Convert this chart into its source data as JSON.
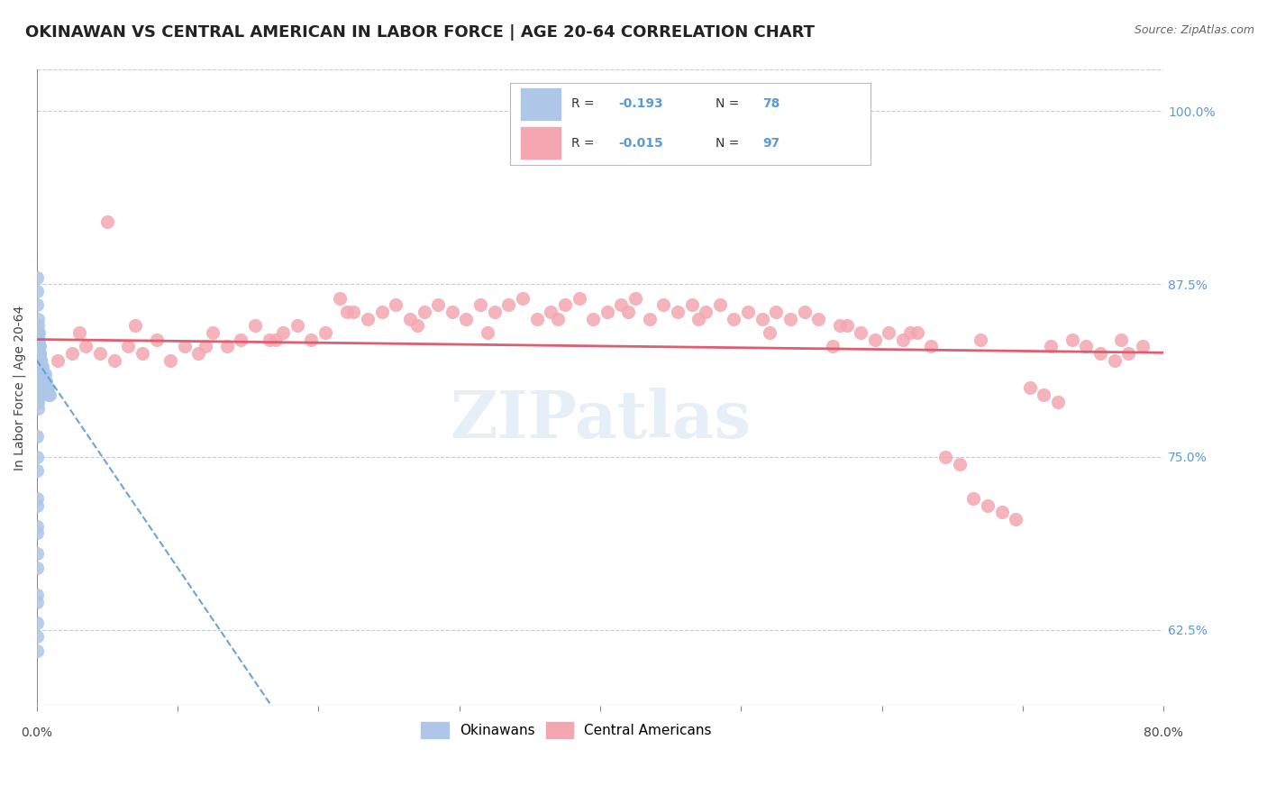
{
  "title": "OKINAWAN VS CENTRAL AMERICAN IN LABOR FORCE | AGE 20-64 CORRELATION CHART",
  "source": "Source: ZipAtlas.com",
  "ylabel": "In Labor Force | Age 20-64",
  "legend_bottom": [
    "Okinawans",
    "Central Americans"
  ],
  "right_yticks": [
    62.5,
    75.0,
    87.5,
    100.0
  ],
  "right_yticklabels": [
    "62.5%",
    "75.0%",
    "87.5%",
    "100.0%"
  ],
  "okinawan_color": "#aec6e8",
  "central_american_color": "#f4a7b0",
  "okinawan_line_color": "#5b9bd5",
  "central_american_line_color": "#e05c6e",
  "R_okinawan": -0.193,
  "N_okinawan": 78,
  "R_central": -0.015,
  "N_central": 97,
  "xlim": [
    0.0,
    80.0
  ],
  "ylim": [
    57.0,
    103.0
  ],
  "background_color": "#ffffff",
  "grid_color": "#cccccc",
  "okinawan_x": [
    0.05,
    0.05,
    0.05,
    0.05,
    0.05,
    0.05,
    0.05,
    0.1,
    0.1,
    0.1,
    0.1,
    0.1,
    0.1,
    0.1,
    0.1,
    0.1,
    0.1,
    0.1,
    0.15,
    0.15,
    0.15,
    0.15,
    0.15,
    0.15,
    0.15,
    0.2,
    0.2,
    0.2,
    0.2,
    0.2,
    0.25,
    0.25,
    0.25,
    0.3,
    0.3,
    0.3,
    0.35,
    0.35,
    0.4,
    0.4,
    0.45,
    0.5,
    0.55,
    0.6,
    0.65,
    0.7,
    0.75,
    0.8,
    0.85,
    0.9,
    0.05,
    0.05,
    0.05,
    0.1,
    0.1,
    0.1,
    0.1,
    0.15,
    0.15,
    0.2,
    0.2,
    0.25,
    0.3,
    0.35,
    0.05,
    0.05,
    0.05,
    0.05,
    0.05,
    0.05,
    0.05,
    0.05,
    0.05,
    0.05,
    0.05,
    0.05,
    0.05,
    0.05
  ],
  "okinawan_y": [
    82.0,
    81.5,
    81.0,
    80.5,
    80.0,
    79.5,
    79.0,
    83.5,
    83.0,
    82.5,
    82.0,
    81.5,
    81.0,
    80.5,
    80.0,
    79.5,
    79.0,
    78.5,
    83.0,
    82.5,
    82.0,
    81.5,
    81.0,
    80.5,
    80.0,
    82.5,
    82.0,
    81.5,
    81.0,
    80.5,
    82.0,
    81.5,
    81.0,
    82.0,
    81.5,
    81.0,
    81.5,
    81.0,
    81.5,
    81.0,
    81.0,
    81.0,
    80.5,
    81.0,
    80.5,
    80.0,
    80.0,
    80.0,
    79.5,
    79.5,
    88.0,
    87.0,
    86.0,
    85.0,
    84.5,
    84.0,
    83.5,
    84.0,
    83.5,
    83.0,
    82.5,
    82.0,
    81.5,
    81.0,
    75.0,
    72.0,
    70.0,
    68.0,
    65.0,
    63.0,
    61.0,
    76.5,
    74.0,
    71.5,
    69.5,
    67.0,
    64.5,
    62.0
  ],
  "central_x": [
    1.5,
    2.5,
    3.5,
    4.5,
    5.5,
    6.5,
    7.5,
    8.5,
    9.5,
    10.5,
    11.5,
    12.5,
    13.5,
    14.5,
    15.5,
    16.5,
    17.5,
    18.5,
    19.5,
    20.5,
    21.5,
    22.5,
    23.5,
    24.5,
    25.5,
    26.5,
    27.5,
    28.5,
    29.5,
    30.5,
    31.5,
    32.5,
    33.5,
    34.5,
    35.5,
    36.5,
    37.5,
    38.5,
    39.5,
    40.5,
    41.5,
    42.5,
    43.5,
    44.5,
    45.5,
    46.5,
    47.5,
    48.5,
    49.5,
    50.5,
    51.5,
    52.5,
    53.5,
    54.5,
    55.5,
    56.5,
    57.5,
    58.5,
    59.5,
    60.5,
    61.5,
    62.5,
    63.5,
    64.5,
    65.5,
    66.5,
    67.5,
    68.5,
    69.5,
    70.5,
    71.5,
    72.5,
    73.5,
    74.5,
    75.5,
    76.5,
    77.5,
    78.5,
    3.0,
    7.0,
    12.0,
    17.0,
    22.0,
    27.0,
    32.0,
    37.0,
    42.0,
    47.0,
    52.0,
    57.0,
    62.0,
    67.0,
    72.0,
    77.0,
    5.0
  ],
  "central_y": [
    82.0,
    82.5,
    83.0,
    82.5,
    82.0,
    83.0,
    82.5,
    83.5,
    82.0,
    83.0,
    82.5,
    84.0,
    83.0,
    83.5,
    84.5,
    83.5,
    84.0,
    84.5,
    83.5,
    84.0,
    86.5,
    85.5,
    85.0,
    85.5,
    86.0,
    85.0,
    85.5,
    86.0,
    85.5,
    85.0,
    86.0,
    85.5,
    86.0,
    86.5,
    85.0,
    85.5,
    86.0,
    86.5,
    85.0,
    85.5,
    86.0,
    86.5,
    85.0,
    86.0,
    85.5,
    86.0,
    85.5,
    86.0,
    85.0,
    85.5,
    85.0,
    85.5,
    85.0,
    85.5,
    85.0,
    83.0,
    84.5,
    84.0,
    83.5,
    84.0,
    83.5,
    84.0,
    83.0,
    75.0,
    74.5,
    72.0,
    71.5,
    71.0,
    70.5,
    80.0,
    79.5,
    79.0,
    83.5,
    83.0,
    82.5,
    82.0,
    82.5,
    83.0,
    84.0,
    84.5,
    83.0,
    83.5,
    85.5,
    84.5,
    84.0,
    85.0,
    85.5,
    85.0,
    84.0,
    84.5,
    84.0,
    83.5,
    83.0,
    83.5,
    92.0
  ],
  "watermark_text": "ZIPatlas",
  "title_fontsize": 13,
  "axis_label_fontsize": 10,
  "tick_fontsize": 10,
  "legend_fontsize": 11
}
